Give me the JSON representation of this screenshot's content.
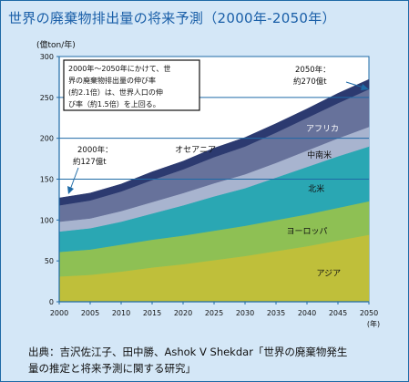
{
  "title": "世界の廃棄物排出量の将来予測（2000年-2050年）",
  "source_lines": [
    "出典：吉沢佐江子、田中勝、Ashok V Shekdar「世界の廃棄物発生",
    "量の推定と将来予測に関する研究」"
  ],
  "colors": {
    "asia": "#bfbf3a",
    "europe": "#8ec054",
    "north_america": "#2aa7b3",
    "latin_america": "#a8b4cf",
    "africa": "#67729b",
    "oceania": "#2c3a70",
    "background": "#d4e7f7"
  },
  "chart_data": {
    "type": "area",
    "stacked": true,
    "title": "世界の廃棄物排出量の将来予測（2000年-2050年）",
    "ylabel": "(億ton/年)",
    "xlabel": "(年)",
    "xlim": [
      2000,
      2050
    ],
    "ylim": [
      0,
      300
    ],
    "x_ticks": [
      "2000",
      "2005",
      "2010",
      "2015",
      "2020",
      "2025",
      "2030",
      "2035",
      "2040",
      "2045",
      "2050"
    ],
    "y_ticks": [
      "0",
      "50",
      "100",
      "150",
      "200",
      "250",
      "300"
    ],
    "x": [
      2000,
      2005,
      2010,
      2015,
      2020,
      2025,
      2030,
      2035,
      2040,
      2045,
      2050
    ],
    "series": [
      {
        "name": "アジア",
        "color": "#bfbf3a",
        "values": [
          31,
          33,
          37,
          42,
          46,
          51,
          56,
          62,
          68,
          75,
          82
        ]
      },
      {
        "name": "ヨーロッパ",
        "color": "#8ec054",
        "values": [
          30,
          31,
          33,
          34,
          35,
          36,
          37,
          38,
          39,
          40,
          41
        ]
      },
      {
        "name": "北米",
        "color": "#2aa7b3",
        "values": [
          25,
          26,
          28,
          32,
          37,
          42,
          46,
          52,
          58,
          63,
          67
        ]
      },
      {
        "name": "中南米",
        "color": "#a8b4cf",
        "values": [
          12,
          12,
          13,
          14,
          15,
          16,
          17,
          18,
          20,
          22,
          24
        ]
      },
      {
        "name": "アフリカ",
        "color": "#67729b",
        "values": [
          20,
          22,
          24,
          27,
          29,
          32,
          34,
          37,
          40,
          43,
          46
        ]
      },
      {
        "name": "オセアニア",
        "color": "#2c3a70",
        "values": [
          9,
          9,
          9,
          10,
          10,
          11,
          11,
          11,
          11,
          12,
          12
        ]
      }
    ],
    "annotations": [
      {
        "id": "start",
        "x": 2000,
        "y": 127,
        "lines": [
          "2000年：",
          "約127億t"
        ]
      },
      {
        "id": "end",
        "x": 2050,
        "y": 270,
        "lines": [
          "2050年：",
          "約270億t"
        ]
      },
      {
        "id": "note",
        "lines": [
          "2000年～2050年にかけて、世",
          "界の廃棄物排出量の伸び率",
          "(約2.1倍）は、世界人口の伸",
          "び率（約1.5倍）を上回る。"
        ]
      }
    ],
    "reference_lines": [
      150,
      200,
      250
    ],
    "legend": "inline labels on areas"
  }
}
